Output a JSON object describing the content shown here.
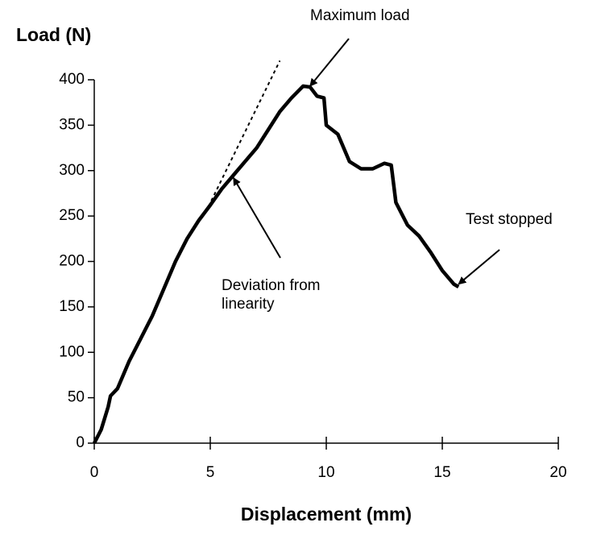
{
  "chart_data": {
    "type": "line",
    "ylabel": "Load (N)",
    "xlabel": "Displacement (mm)",
    "xlim": [
      0,
      20
    ],
    "xticks": [
      0,
      5,
      10,
      15,
      20
    ],
    "ylim": [
      0,
      400
    ],
    "yticks": [
      0,
      50,
      100,
      150,
      200,
      250,
      300,
      350,
      400
    ],
    "series": [
      {
        "color": "#000000",
        "x": [
          0,
          0.3,
          0.6,
          0.7,
          1,
          1.5,
          2,
          2.5,
          3,
          3.5,
          4,
          4.5,
          5,
          5.5,
          6,
          6.5,
          7,
          7.5,
          8,
          8.5,
          9,
          9.3,
          9.6,
          9.9,
          10,
          10.5,
          11,
          11.5,
          12,
          12.5,
          12.8,
          13,
          13.5,
          14,
          14.5,
          15,
          15.5,
          15.7
        ],
        "values": [
          0,
          15,
          40,
          52,
          60,
          90,
          115,
          140,
          170,
          200,
          225,
          245,
          262,
          280,
          295,
          310,
          325,
          345,
          365,
          380,
          393,
          392,
          382,
          380,
          350,
          340,
          310,
          302,
          302,
          308,
          306,
          265,
          240,
          228,
          210,
          190,
          175,
          172
        ]
      }
    ],
    "trend_line": {
      "x": [
        4.8,
        8
      ],
      "values": [
        254,
        421
      ]
    },
    "annotations": [
      {
        "lines": [
          "Maximum load"
        ],
        "x": 9.3,
        "y": 393
      },
      {
        "lines": [
          "Deviation from",
          "linearity"
        ],
        "x": 6,
        "y": 292
      },
      {
        "lines": [
          "Test stopped"
        ],
        "x": 15.7,
        "y": 175
      }
    ]
  }
}
